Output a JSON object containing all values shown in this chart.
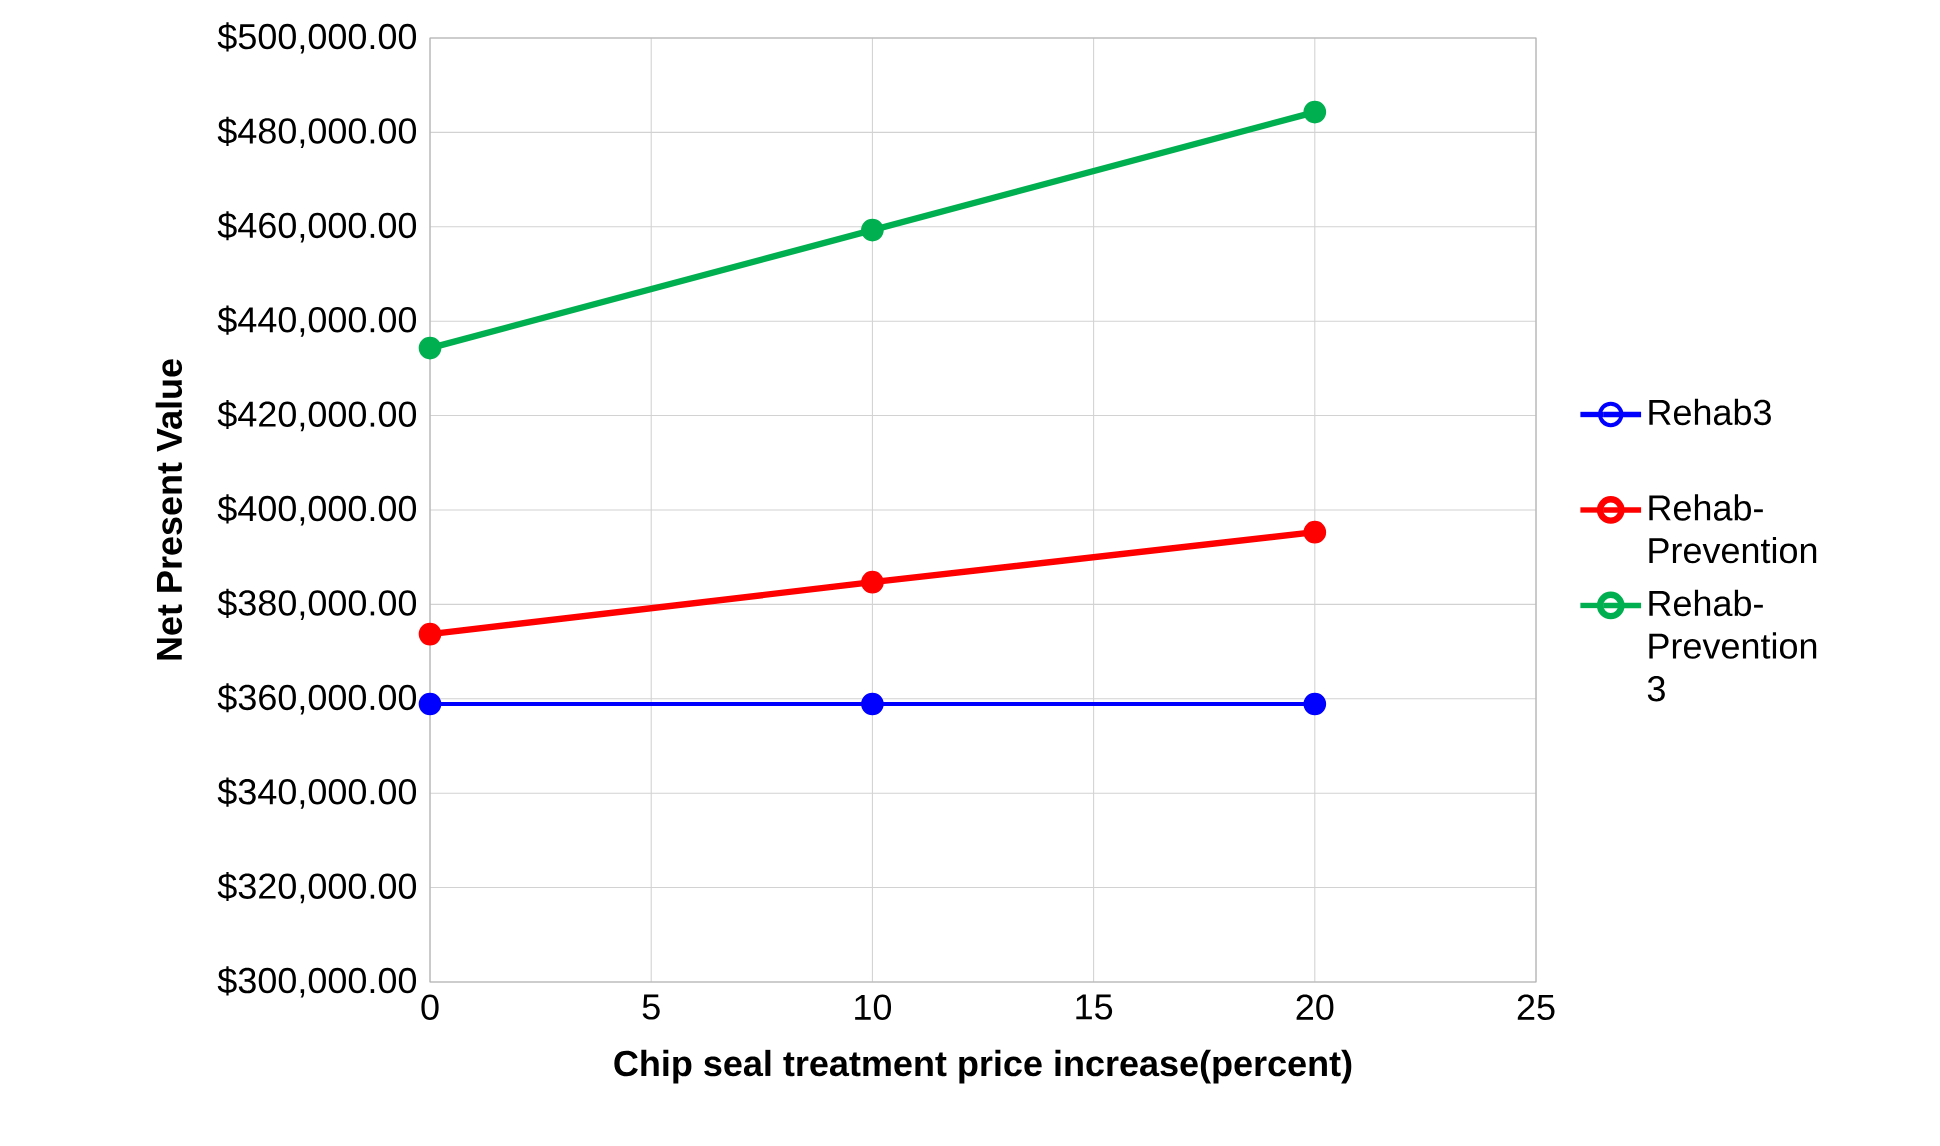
{
  "chart_data": {
    "type": "line",
    "xlabel": "Chip seal treatment price increase(percent)",
    "ylabel": "Net Present Value",
    "x": [
      0,
      10,
      20
    ],
    "series": [
      {
        "name": "Rehab3",
        "color": "#0000ff",
        "values": [
          358900,
          358900,
          358900
        ]
      },
      {
        "name": "Rehab-Prevention",
        "color": "#ff0000",
        "values": [
          373700,
          384700,
          395300
        ]
      },
      {
        "name": "Rehab-Prevention 3",
        "color": "#00b050",
        "values": [
          434300,
          459300,
          484300
        ]
      }
    ],
    "xlim": [
      0,
      25
    ],
    "xticks": [
      0,
      5,
      10,
      15,
      20,
      25
    ],
    "ylim": [
      300000,
      500000
    ],
    "yticks": [
      {
        "value": 300000,
        "label": "$300,000.00"
      },
      {
        "value": 320000,
        "label": "$320,000.00"
      },
      {
        "value": 340000,
        "label": "$340,000.00"
      },
      {
        "value": 360000,
        "label": "$360,000.00"
      },
      {
        "value": 380000,
        "label": "$380,000.00"
      },
      {
        "value": 400000,
        "label": "$400,000.00"
      },
      {
        "value": 420000,
        "label": "$420,000.00"
      },
      {
        "value": 440000,
        "label": "$440,000.00"
      },
      {
        "value": 460000,
        "label": "$460,000.00"
      },
      {
        "value": 480000,
        "label": "$480,000.00"
      },
      {
        "value": 500000,
        "label": "$500,000.00"
      }
    ],
    "grid": true,
    "legend": "right",
    "marker": "circle",
    "line_style": "solid"
  }
}
